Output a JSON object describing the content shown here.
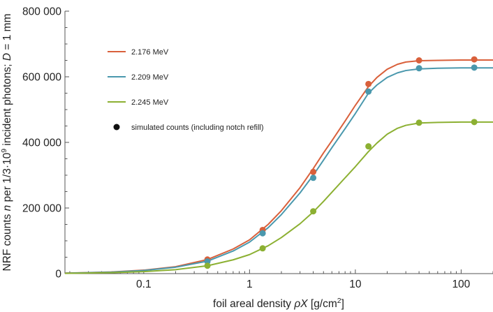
{
  "chart_data": {
    "type": "line",
    "xscale": "log",
    "xlim": [
      0.018,
      200
    ],
    "ylim": [
      0,
      800000
    ],
    "xticks": [
      {
        "value": 0.1,
        "label": "0.1"
      },
      {
        "value": 1,
        "label": "1"
      },
      {
        "value": 10,
        "label": "10"
      },
      {
        "value": 100,
        "label": "100"
      }
    ],
    "yticks": [
      {
        "value": 0,
        "label": "0"
      },
      {
        "value": 200000,
        "label": "200 000"
      },
      {
        "value": 400000,
        "label": "400 000"
      },
      {
        "value": 600000,
        "label": "600 000"
      },
      {
        "value": 800000,
        "label": "800 000"
      }
    ],
    "xlabel": {
      "prefix": "foil areal density ",
      "var": "ρX",
      "unit": " [g/cm",
      "exp": "2",
      "suffix": "]"
    },
    "ylabel": {
      "p1": "NRF counts ",
      "var1": "n",
      "p2": " per 1/3·10",
      "exp": "9",
      "p3": " incident photons; ",
      "var2": "D",
      "p4": " = 1 mm"
    },
    "legend_position": "top-left",
    "series": [
      {
        "name": "2.176 MeV",
        "color": "#d9603b",
        "curve_x": [
          0.018,
          0.05,
          0.1,
          0.2,
          0.4,
          0.7,
          1,
          1.5,
          2,
          3,
          4,
          5,
          6,
          8,
          10,
          13.3,
          16,
          20,
          25,
          30,
          40,
          60,
          100,
          140,
          200
        ],
        "curve_y": [
          1500,
          5000,
          10500,
          21000,
          43000,
          75000,
          103000,
          150000,
          192000,
          262000,
          320000,
          368000,
          405000,
          465000,
          513000,
          570000,
          598000,
          623000,
          638000,
          645000,
          649000,
          650000,
          651000,
          651000,
          651000
        ],
        "points_x": [
          0.4,
          1.33,
          4,
          13.3,
          40,
          133
        ],
        "points_y": [
          43000,
          133000,
          310000,
          578000,
          650000,
          653000
        ]
      },
      {
        "name": "2.209 MeV",
        "color": "#4a98ad",
        "curve_x": [
          0.018,
          0.05,
          0.1,
          0.2,
          0.4,
          0.7,
          1,
          1.5,
          2,
          3,
          4,
          5,
          6,
          8,
          10,
          13.3,
          16,
          20,
          25,
          30,
          40,
          60,
          100,
          140,
          200
        ],
        "curve_y": [
          1400,
          4500,
          9500,
          19500,
          38000,
          69000,
          96000,
          140000,
          180000,
          246000,
          300000,
          346000,
          384000,
          442000,
          488000,
          550000,
          575000,
          598000,
          612000,
          619000,
          624000,
          626000,
          627000,
          627000,
          627000
        ],
        "points_x": [
          0.4,
          1.33,
          4,
          13.3,
          40,
          133
        ],
        "points_y": [
          37000,
          123000,
          292000,
          555000,
          626000,
          628000
        ]
      },
      {
        "name": "2.245 MeV",
        "color": "#8cb032",
        "curve_x": [
          0.018,
          0.05,
          0.1,
          0.2,
          0.4,
          0.7,
          1,
          1.5,
          2,
          3,
          4,
          5,
          6,
          8,
          10,
          13.3,
          16,
          20,
          25,
          30,
          40,
          60,
          100,
          140,
          200
        ],
        "curve_y": [
          900,
          3000,
          6000,
          12000,
          24000,
          42000,
          58000,
          85000,
          110000,
          152000,
          188000,
          220000,
          248000,
          292000,
          326000,
          372000,
          398000,
          425000,
          443000,
          452000,
          459000,
          461000,
          462000,
          462000,
          462000
        ],
        "points_x": [
          0.4,
          1.33,
          4,
          13.3,
          40,
          133
        ],
        "points_y": [
          24000,
          77000,
          190000,
          388000,
          460000,
          462000
        ]
      }
    ],
    "marker_legend": {
      "name": "simulated counts (including notch refill)",
      "color": "#111111"
    }
  }
}
